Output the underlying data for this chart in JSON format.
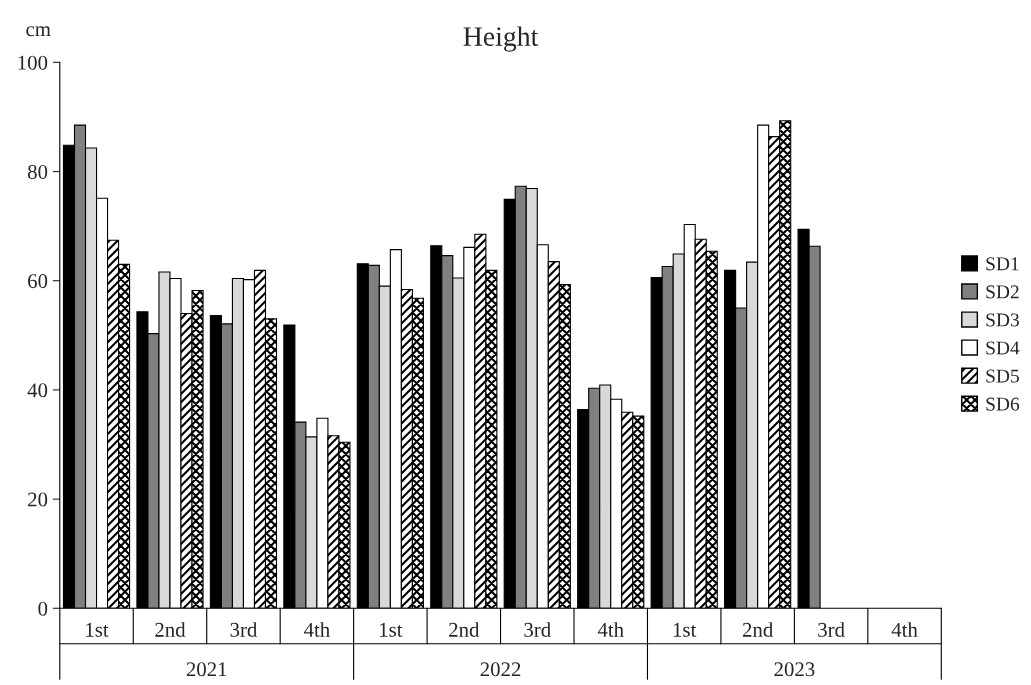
{
  "chart_data": {
    "type": "bar",
    "title": "Height",
    "ylabel": "cm",
    "categories": [
      "1st",
      "2nd",
      "3rd",
      "4th",
      "1st",
      "2nd",
      "3rd",
      "4th",
      "1st",
      "2nd",
      "3rd",
      "4th"
    ],
    "annotations": [
      "2021",
      "2022",
      "2023"
    ],
    "series": [
      {
        "name": "SD1",
        "color": "#000000",
        "values": [
          84.8,
          54.3,
          53.6,
          51.9,
          63.1,
          66.4,
          74.9,
          36.4,
          60.6,
          61.9,
          69.4,
          null
        ]
      },
      {
        "name": "SD2",
        "color": "#808080",
        "values": [
          88.5,
          50.3,
          52.1,
          34.1,
          62.8,
          64.6,
          77.3,
          40.3,
          62.6,
          55.0,
          66.3,
          null
        ]
      },
      {
        "name": "SD3",
        "color": "#d9d9d9",
        "values": [
          84.3,
          61.6,
          60.4,
          31.4,
          59.0,
          60.5,
          76.9,
          40.9,
          64.9,
          63.4,
          null,
          null
        ]
      },
      {
        "name": "SD4",
        "color": "#ffffff",
        "values": [
          75.1,
          60.4,
          60.2,
          34.8,
          65.7,
          66.1,
          66.6,
          38.3,
          70.3,
          88.5,
          null,
          null
        ]
      },
      {
        "name": "SD5",
        "color": "#000000",
        "values": [
          67.4,
          54.0,
          61.9,
          31.6,
          58.4,
          68.5,
          63.5,
          35.9,
          67.6,
          86.4,
          null,
          null
        ]
      },
      {
        "name": "SD6",
        "color": "#000000",
        "values": [
          63.0,
          58.2,
          53.0,
          30.4,
          56.8,
          61.9,
          59.3,
          35.2,
          65.4,
          89.3,
          null,
          null
        ]
      }
    ],
    "ylim": [
      0,
      100
    ],
    "yticks": [
      0,
      20,
      40,
      60,
      80,
      100
    ],
    "grid": false,
    "legend": "right"
  }
}
